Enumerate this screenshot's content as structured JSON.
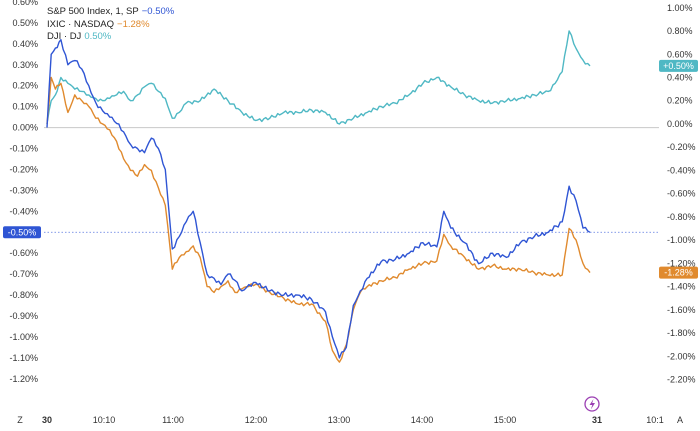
{
  "chart_data": {
    "type": "line",
    "x_axis": {
      "start": "09:30",
      "end": "16:00",
      "ticks": [
        "30",
        "10:10",
        "11:00",
        "12:00",
        "13:00",
        "14:00",
        "15:00",
        "31",
        "10:1"
      ],
      "bold_ticks": [
        "30",
        "31"
      ],
      "zone_label": "Z",
      "auto_label": "A"
    },
    "left_axis": {
      "ylim": [
        -1.22,
        0.6
      ],
      "ticks": [
        "0.60%",
        "0.50%",
        "0.40%",
        "0.30%",
        "0.20%",
        "0.10%",
        "0.00%",
        "-0.10%",
        "-0.20%",
        "-0.30%",
        "-0.40%",
        "-0.50%",
        "-0.60%",
        "-0.70%",
        "-0.80%",
        "-0.90%",
        "-1.00%",
        "-1.10%",
        "-1.20%"
      ],
      "tick_values": [
        0.6,
        0.5,
        0.4,
        0.3,
        0.2,
        0.1,
        0,
        -0.1,
        -0.2,
        -0.3,
        -0.4,
        -0.5,
        -0.6,
        -0.7,
        -0.8,
        -0.9,
        -1.0,
        -1.1,
        -1.2
      ],
      "last_value_tag": "-0.50%",
      "last_value": -0.5
    },
    "right_axis": {
      "ylim": [
        -2.23,
        1.05
      ],
      "ticks": [
        "1.00%",
        "0.80%",
        "0.60%",
        "0.40%",
        "0.20%",
        "0.00%",
        "-0.20%",
        "-0.40%",
        "-0.60%",
        "-0.80%",
        "-1.00%",
        "-1.20%",
        "-1.40%",
        "-1.60%",
        "-1.80%",
        "-2.00%",
        "-2.20%"
      ],
      "tick_values": [
        1.0,
        0.8,
        0.6,
        0.4,
        0.2,
        0,
        -0.2,
        -0.4,
        -0.6,
        -0.8,
        -1.0,
        -1.2,
        -1.4,
        -1.6,
        -1.8,
        -2.0,
        -2.2
      ],
      "tags": [
        {
          "label": "+0.50%",
          "value": 0.5,
          "color": "#4fb8c4"
        },
        {
          "label": "-1.28%",
          "value": -1.28,
          "color": "#e08a2e"
        }
      ]
    },
    "series": [
      {
        "name": "S&P 500 Index, 1, SP",
        "value_label": "−0.50%",
        "color": "#2f55d4",
        "axis": "left",
        "x": [
          "09:30",
          "09:33",
          "09:36",
          "09:40",
          "09:45",
          "09:50",
          "09:55",
          "10:00",
          "10:05",
          "10:10",
          "10:15",
          "10:20",
          "10:25",
          "10:30",
          "10:35",
          "10:40",
          "10:45",
          "10:50",
          "10:55",
          "11:00",
          "11:05",
          "11:10",
          "11:15",
          "11:20",
          "11:25",
          "11:30",
          "11:35",
          "11:40",
          "11:45",
          "11:50",
          "11:55",
          "12:00",
          "12:10",
          "12:20",
          "12:30",
          "12:40",
          "12:50",
          "12:55",
          "13:00",
          "13:05",
          "13:10",
          "13:15",
          "13:20",
          "13:30",
          "13:40",
          "13:50",
          "14:00",
          "14:10",
          "14:15",
          "14:20",
          "14:30",
          "14:40",
          "14:50",
          "15:00",
          "15:10",
          "15:20",
          "15:30",
          "15:40",
          "15:45",
          "15:50",
          "15:55",
          "16:00"
        ],
        "y": [
          0.0,
          0.35,
          0.38,
          0.42,
          0.3,
          0.32,
          0.28,
          0.2,
          0.12,
          0.08,
          0.05,
          0.02,
          -0.02,
          -0.08,
          -0.1,
          -0.12,
          -0.05,
          -0.1,
          -0.2,
          -0.58,
          -0.52,
          -0.45,
          -0.4,
          -0.55,
          -0.7,
          -0.72,
          -0.75,
          -0.7,
          -0.73,
          -0.78,
          -0.75,
          -0.74,
          -0.78,
          -0.8,
          -0.8,
          -0.82,
          -0.88,
          -1.0,
          -1.1,
          -1.05,
          -0.85,
          -0.78,
          -0.72,
          -0.64,
          -0.63,
          -0.6,
          -0.55,
          -0.57,
          -0.4,
          -0.48,
          -0.55,
          -0.65,
          -0.6,
          -0.62,
          -0.55,
          -0.52,
          -0.5,
          -0.45,
          -0.28,
          -0.35,
          -0.48,
          -0.5
        ]
      },
      {
        "name": "IXIC · NASDAQ",
        "value_label": "−1.28%",
        "color": "#e08a2e",
        "axis": "right",
        "x": [
          "09:30",
          "09:33",
          "09:36",
          "09:40",
          "09:45",
          "09:50",
          "09:55",
          "10:00",
          "10:05",
          "10:10",
          "10:15",
          "10:20",
          "10:25",
          "10:30",
          "10:35",
          "10:40",
          "10:45",
          "10:50",
          "10:55",
          "11:00",
          "11:05",
          "11:10",
          "11:15",
          "11:20",
          "11:25",
          "11:30",
          "11:35",
          "11:40",
          "11:45",
          "11:50",
          "11:55",
          "12:00",
          "12:10",
          "12:20",
          "12:30",
          "12:40",
          "12:50",
          "12:55",
          "13:00",
          "13:05",
          "13:10",
          "13:15",
          "13:20",
          "13:30",
          "13:40",
          "13:50",
          "14:00",
          "14:10",
          "14:15",
          "14:20",
          "14:30",
          "14:40",
          "14:50",
          "15:00",
          "15:10",
          "15:20",
          "15:30",
          "15:40",
          "15:45",
          "15:50",
          "15:55",
          "16:00"
        ],
        "y": [
          0.0,
          0.4,
          0.3,
          0.35,
          0.1,
          0.25,
          0.2,
          0.15,
          0.05,
          0.0,
          -0.05,
          -0.15,
          -0.3,
          -0.4,
          -0.45,
          -0.35,
          -0.4,
          -0.55,
          -0.7,
          -1.25,
          -1.15,
          -1.1,
          -1.05,
          -1.15,
          -1.4,
          -1.45,
          -1.4,
          -1.35,
          -1.45,
          -1.42,
          -1.4,
          -1.38,
          -1.45,
          -1.5,
          -1.55,
          -1.55,
          -1.7,
          -1.95,
          -2.05,
          -1.9,
          -1.6,
          -1.45,
          -1.4,
          -1.35,
          -1.32,
          -1.25,
          -1.2,
          -1.18,
          -0.95,
          -1.05,
          -1.15,
          -1.25,
          -1.22,
          -1.25,
          -1.25,
          -1.28,
          -1.3,
          -1.3,
          -0.9,
          -1.0,
          -1.2,
          -1.28
        ]
      },
      {
        "name": "DJI · DJ",
        "value_label": "0.50%",
        "color": "#4fb8c4",
        "axis": "right",
        "x": [
          "09:30",
          "09:33",
          "09:36",
          "09:40",
          "09:45",
          "09:50",
          "09:55",
          "10:00",
          "10:05",
          "10:10",
          "10:15",
          "10:20",
          "10:25",
          "10:30",
          "10:35",
          "10:40",
          "10:45",
          "10:50",
          "10:55",
          "11:00",
          "11:05",
          "11:10",
          "11:20",
          "11:30",
          "11:40",
          "11:50",
          "12:00",
          "12:10",
          "12:20",
          "12:30",
          "12:40",
          "12:50",
          "13:00",
          "13:10",
          "13:20",
          "13:30",
          "13:40",
          "13:50",
          "14:00",
          "14:10",
          "14:20",
          "14:30",
          "14:40",
          "14:50",
          "15:00",
          "15:10",
          "15:20",
          "15:30",
          "15:35",
          "15:40",
          "15:45",
          "15:50",
          "15:55",
          "16:00"
        ],
        "y": [
          0.0,
          0.2,
          0.25,
          0.4,
          0.35,
          0.3,
          0.28,
          0.25,
          0.22,
          0.2,
          0.22,
          0.25,
          0.28,
          0.2,
          0.25,
          0.32,
          0.35,
          0.28,
          0.22,
          0.05,
          0.1,
          0.18,
          0.2,
          0.3,
          0.2,
          0.1,
          0.03,
          0.05,
          0.1,
          0.1,
          0.12,
          0.1,
          0.0,
          0.05,
          0.1,
          0.15,
          0.18,
          0.25,
          0.35,
          0.4,
          0.32,
          0.25,
          0.2,
          0.18,
          0.2,
          0.22,
          0.25,
          0.28,
          0.35,
          0.45,
          0.8,
          0.65,
          0.55,
          0.5
        ]
      }
    ]
  }
}
